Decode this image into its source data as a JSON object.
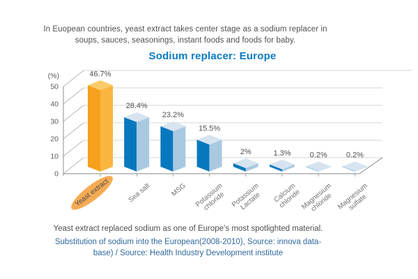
{
  "intro": {
    "line1": "In Euopean countries, yeast extract takes center stage as a sodium replacer in",
    "line2": "soups, sauces, seasonings, instant foods and foods for baby."
  },
  "chart_data": {
    "type": "bar",
    "title": "Sodium replacer: Europe",
    "unit_label": "(%)",
    "categories": [
      "Yeast extract",
      "Sea salt",
      "MSG",
      "Potassium\nchloride",
      "Potassium\nLactate",
      "Calcium\nchloride",
      "Magnesium\nchloride",
      "Magnesium\nsulfate"
    ],
    "values": [
      46.7,
      28.4,
      23.2,
      15.5,
      2,
      1.3,
      0.2,
      0.2
    ],
    "value_labels": [
      "46.7%",
      "28.4%",
      "23.2%",
      "15.5%",
      "2%",
      "1.3%",
      "0.2%",
      "0.2%"
    ],
    "y_ticks": [
      0,
      10,
      20,
      30,
      40,
      50
    ],
    "ylim": [
      0,
      50
    ],
    "grid": true,
    "style": "3d-column",
    "highlight_category": "Yeast extract",
    "colors": {
      "bar_front": "#0878BE",
      "bar_side": "#A9C9E1",
      "bar_top": "#D7E4F0",
      "highlight_front": "#F5A11D",
      "highlight_side": "#FAB53F",
      "highlight_top": "#FBCA6A",
      "highlight_ellipse": "#F5AB54",
      "title": "#0A7CC3",
      "source_text": "#31689E",
      "value_label_text": "#4F5052",
      "axis_text": "#58595B"
    }
  },
  "footer": {
    "note": "Yeast extract replaced sodium as one of Europe’s most spotlighted material.",
    "source_line1": "Substitution of sodium into the European(2008-2010), Source: innova data-",
    "source_line2": "base) / Source: Health Industry Development institute"
  }
}
